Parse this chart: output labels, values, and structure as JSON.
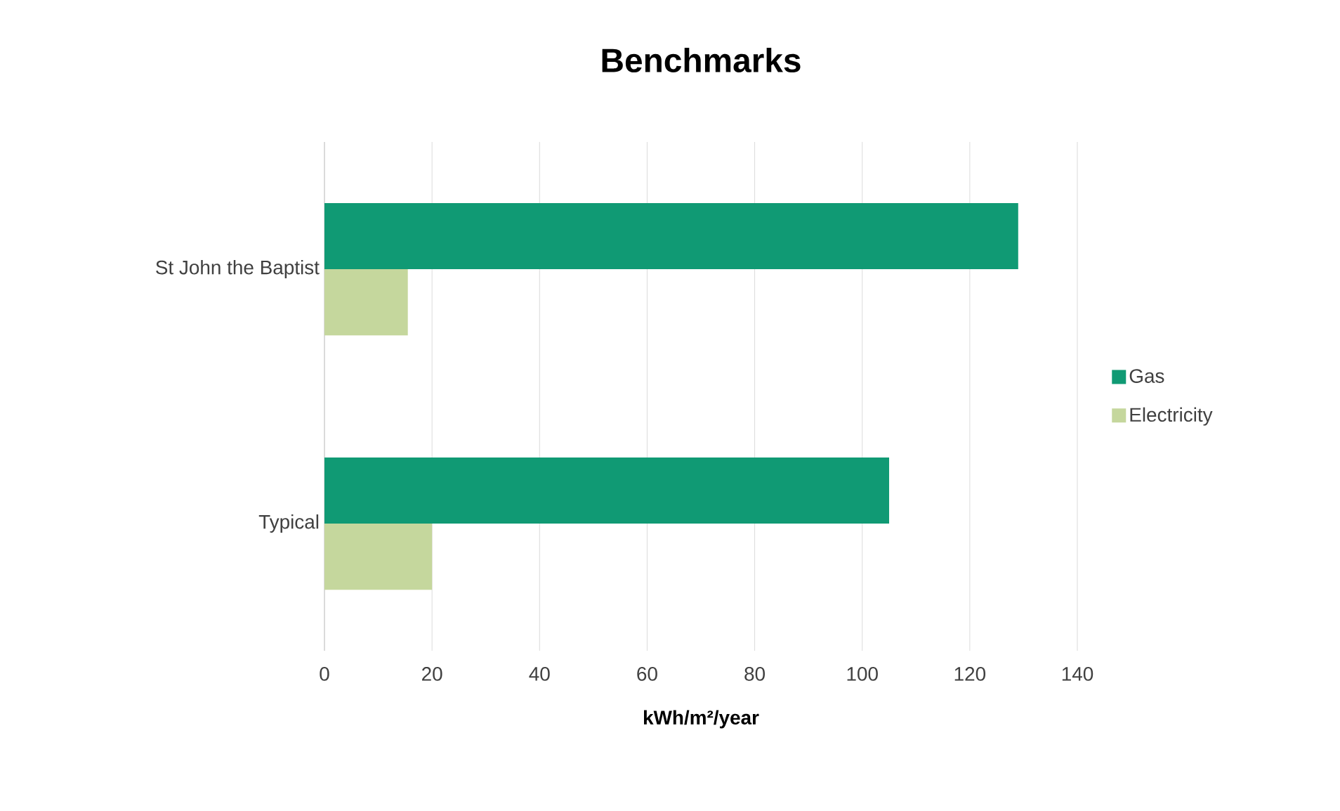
{
  "chart_data": {
    "type": "bar",
    "orientation": "horizontal",
    "title": "Benchmarks",
    "xlabel": "kWh/m²/year",
    "categories": [
      "St John the Baptist",
      "Typical"
    ],
    "series": [
      {
        "name": "Gas",
        "color": "#109a74",
        "values": [
          129,
          105
        ]
      },
      {
        "name": "Electricity",
        "color": "#c5d79d",
        "values": [
          15.5,
          20
        ]
      }
    ],
    "xlim": [
      0,
      140
    ],
    "xticks": [
      0,
      20,
      40,
      60,
      80,
      100,
      120,
      140
    ],
    "grid": "x",
    "legend": "right"
  }
}
